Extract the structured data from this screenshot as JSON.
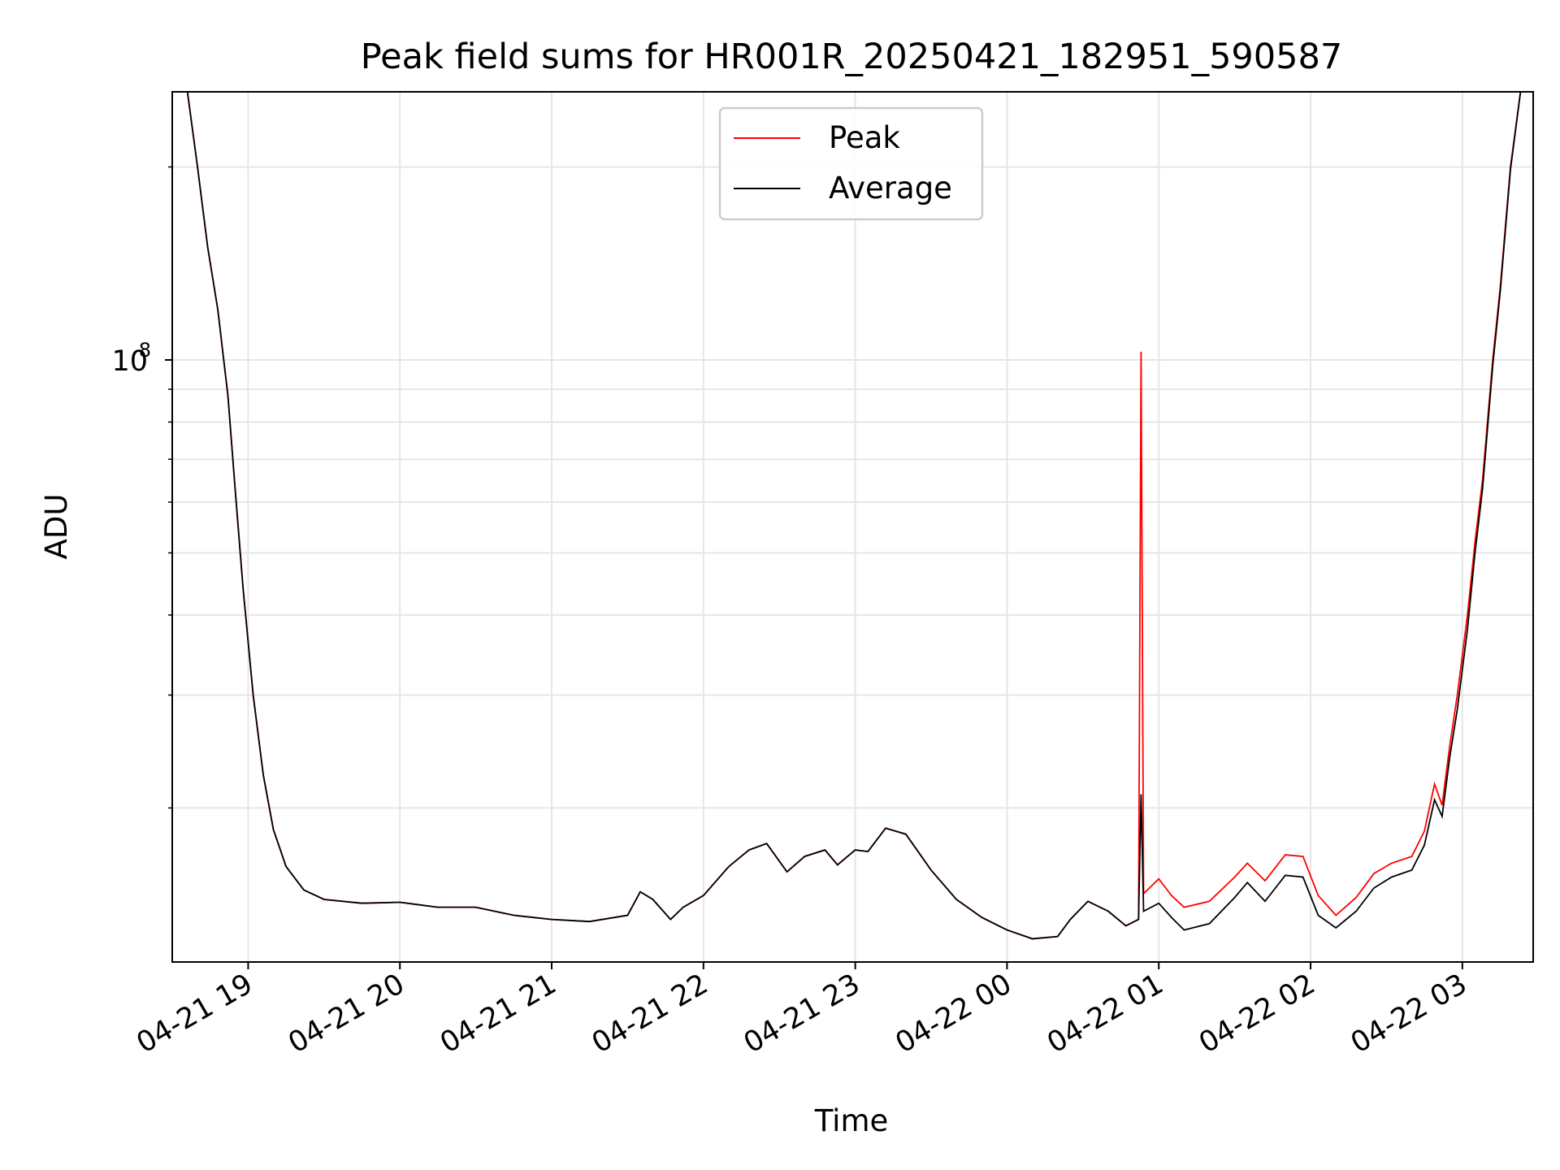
{
  "chart_data": {
    "type": "line",
    "title": "Peak field sums for HR001R_20250421_182951_590587",
    "xlabel": "Time",
    "ylabel": "ADU",
    "x_scale": "time",
    "y_scale": "log",
    "grid": true,
    "legend_position": "upper center",
    "x_range": [
      "2025-04-21 18:30",
      "2025-04-22 03:28"
    ],
    "y_range": [
      11500000,
      262000000
    ],
    "x_ticks": [
      "04-21 19",
      "04-21 20",
      "04-21 21",
      "04-21 22",
      "04-21 23",
      "04-22 00",
      "04-22 01",
      "04-22 02",
      "04-22 03"
    ],
    "y_major_tick": {
      "base": "10",
      "exponent": "8"
    },
    "series": [
      {
        "name": "Peak",
        "color": "#ff0000",
        "points": [
          [
            "2025-04-21 18:36",
            262000000
          ],
          [
            "2025-04-21 18:40",
            200000000
          ],
          [
            "2025-04-21 18:44",
            150000000
          ],
          [
            "2025-04-21 18:48",
            120000000
          ],
          [
            "2025-04-21 18:52",
            88000000
          ],
          [
            "2025-04-21 18:55",
            62000000
          ],
          [
            "2025-04-21 18:58",
            44000000
          ],
          [
            "2025-04-21 19:02",
            30000000
          ],
          [
            "2025-04-21 19:06",
            22500000
          ],
          [
            "2025-04-21 19:10",
            18500000
          ],
          [
            "2025-04-21 19:15",
            16200000
          ],
          [
            "2025-04-21 19:22",
            14900000
          ],
          [
            "2025-04-21 19:30",
            14400000
          ],
          [
            "2025-04-21 19:45",
            14200000
          ],
          [
            "2025-04-21 20:00",
            14250000
          ],
          [
            "2025-04-21 20:15",
            14000000
          ],
          [
            "2025-04-21 20:30",
            14000000
          ],
          [
            "2025-04-21 20:45",
            13600000
          ],
          [
            "2025-04-21 21:00",
            13400000
          ],
          [
            "2025-04-21 21:15",
            13300000
          ],
          [
            "2025-04-21 21:30",
            13600000
          ],
          [
            "2025-04-21 21:35",
            14800000
          ],
          [
            "2025-04-21 21:40",
            14400000
          ],
          [
            "2025-04-21 21:47",
            13400000
          ],
          [
            "2025-04-21 21:52",
            14000000
          ],
          [
            "2025-04-21 22:00",
            14600000
          ],
          [
            "2025-04-21 22:10",
            16200000
          ],
          [
            "2025-04-21 22:18",
            17200000
          ],
          [
            "2025-04-21 22:25",
            17600000
          ],
          [
            "2025-04-21 22:33",
            15900000
          ],
          [
            "2025-04-21 22:40",
            16800000
          ],
          [
            "2025-04-21 22:48",
            17200000
          ],
          [
            "2025-04-21 22:53",
            16300000
          ],
          [
            "2025-04-21 23:00",
            17200000
          ],
          [
            "2025-04-21 23:05",
            17100000
          ],
          [
            "2025-04-21 23:12",
            18600000
          ],
          [
            "2025-04-21 23:20",
            18200000
          ],
          [
            "2025-04-21 23:30",
            16000000
          ],
          [
            "2025-04-21 23:40",
            14400000
          ],
          [
            "2025-04-21 23:50",
            13500000
          ],
          [
            "2025-04-22 00:00",
            12900000
          ],
          [
            "2025-04-22 00:10",
            12500000
          ],
          [
            "2025-04-22 00:20",
            12600000
          ],
          [
            "2025-04-22 00:25",
            13400000
          ],
          [
            "2025-04-22 00:32",
            14300000
          ],
          [
            "2025-04-22 00:40",
            13800000
          ],
          [
            "2025-04-22 00:47",
            13100000
          ],
          [
            "2025-04-22 00:52",
            13400000
          ],
          [
            "2025-04-22 00:53",
            103000000
          ],
          [
            "2025-04-22 00:54",
            14700000
          ],
          [
            "2025-04-22 01:00",
            15500000
          ],
          [
            "2025-04-22 01:05",
            14600000
          ],
          [
            "2025-04-22 01:10",
            14000000
          ],
          [
            "2025-04-22 01:20",
            14300000
          ],
          [
            "2025-04-22 01:30",
            15600000
          ],
          [
            "2025-04-22 01:35",
            16400000
          ],
          [
            "2025-04-22 01:42",
            15400000
          ],
          [
            "2025-04-22 01:50",
            16900000
          ],
          [
            "2025-04-22 01:57",
            16800000
          ],
          [
            "2025-04-22 02:03",
            14600000
          ],
          [
            "2025-04-22 02:10",
            13600000
          ],
          [
            "2025-04-22 02:18",
            14500000
          ],
          [
            "2025-04-22 02:25",
            15800000
          ],
          [
            "2025-04-22 02:32",
            16400000
          ],
          [
            "2025-04-22 02:40",
            16800000
          ],
          [
            "2025-04-22 02:45",
            18400000
          ],
          [
            "2025-04-22 02:49",
            21800000
          ],
          [
            "2025-04-22 02:52",
            20200000
          ],
          [
            "2025-04-22 02:55",
            25000000
          ],
          [
            "2025-04-22 02:58",
            30000000
          ],
          [
            "2025-04-22 03:02",
            40000000
          ],
          [
            "2025-04-22 03:05",
            52000000
          ],
          [
            "2025-04-22 03:08",
            65000000
          ],
          [
            "2025-04-22 03:12",
            100000000
          ],
          [
            "2025-04-22 03:15",
            130000000
          ],
          [
            "2025-04-22 03:19",
            200000000
          ],
          [
            "2025-04-22 03:23",
            262000000
          ]
        ]
      },
      {
        "name": "Average",
        "color": "#000000",
        "points": [
          [
            "2025-04-21 18:36",
            262000000
          ],
          [
            "2025-04-21 18:40",
            200000000
          ],
          [
            "2025-04-21 18:44",
            150000000
          ],
          [
            "2025-04-21 18:48",
            120000000
          ],
          [
            "2025-04-21 18:52",
            88000000
          ],
          [
            "2025-04-21 18:55",
            62000000
          ],
          [
            "2025-04-21 18:58",
            44000000
          ],
          [
            "2025-04-21 19:02",
            30000000
          ],
          [
            "2025-04-21 19:06",
            22500000
          ],
          [
            "2025-04-21 19:10",
            18500000
          ],
          [
            "2025-04-21 19:15",
            16200000
          ],
          [
            "2025-04-21 19:22",
            14900000
          ],
          [
            "2025-04-21 19:30",
            14400000
          ],
          [
            "2025-04-21 19:45",
            14200000
          ],
          [
            "2025-04-21 20:00",
            14250000
          ],
          [
            "2025-04-21 20:15",
            14000000
          ],
          [
            "2025-04-21 20:30",
            14000000
          ],
          [
            "2025-04-21 20:45",
            13600000
          ],
          [
            "2025-04-21 21:00",
            13400000
          ],
          [
            "2025-04-21 21:15",
            13300000
          ],
          [
            "2025-04-21 21:30",
            13600000
          ],
          [
            "2025-04-21 21:35",
            14800000
          ],
          [
            "2025-04-21 21:40",
            14400000
          ],
          [
            "2025-04-21 21:47",
            13400000
          ],
          [
            "2025-04-21 21:52",
            14000000
          ],
          [
            "2025-04-21 22:00",
            14600000
          ],
          [
            "2025-04-21 22:10",
            16200000
          ],
          [
            "2025-04-21 22:18",
            17200000
          ],
          [
            "2025-04-21 22:25",
            17600000
          ],
          [
            "2025-04-21 22:33",
            15900000
          ],
          [
            "2025-04-21 22:40",
            16800000
          ],
          [
            "2025-04-21 22:48",
            17200000
          ],
          [
            "2025-04-21 22:53",
            16300000
          ],
          [
            "2025-04-21 23:00",
            17200000
          ],
          [
            "2025-04-21 23:05",
            17100000
          ],
          [
            "2025-04-21 23:12",
            18600000
          ],
          [
            "2025-04-21 23:20",
            18200000
          ],
          [
            "2025-04-21 23:30",
            16000000
          ],
          [
            "2025-04-21 23:40",
            14400000
          ],
          [
            "2025-04-21 23:50",
            13500000
          ],
          [
            "2025-04-22 00:00",
            12900000
          ],
          [
            "2025-04-22 00:10",
            12500000
          ],
          [
            "2025-04-22 00:20",
            12600000
          ],
          [
            "2025-04-22 00:25",
            13400000
          ],
          [
            "2025-04-22 00:32",
            14300000
          ],
          [
            "2025-04-22 00:40",
            13800000
          ],
          [
            "2025-04-22 00:47",
            13100000
          ],
          [
            "2025-04-22 00:52",
            13400000
          ],
          [
            "2025-04-22 00:53",
            21000000
          ],
          [
            "2025-04-22 00:54",
            13800000
          ],
          [
            "2025-04-22 01:00",
            14200000
          ],
          [
            "2025-04-22 01:05",
            13500000
          ],
          [
            "2025-04-22 01:10",
            12900000
          ],
          [
            "2025-04-22 01:20",
            13200000
          ],
          [
            "2025-04-22 01:30",
            14500000
          ],
          [
            "2025-04-22 01:35",
            15300000
          ],
          [
            "2025-04-22 01:42",
            14300000
          ],
          [
            "2025-04-22 01:50",
            15700000
          ],
          [
            "2025-04-22 01:57",
            15600000
          ],
          [
            "2025-04-22 02:03",
            13600000
          ],
          [
            "2025-04-22 02:10",
            13000000
          ],
          [
            "2025-04-22 02:18",
            13800000
          ],
          [
            "2025-04-22 02:25",
            15000000
          ],
          [
            "2025-04-22 02:32",
            15600000
          ],
          [
            "2025-04-22 02:40",
            16000000
          ],
          [
            "2025-04-22 02:45",
            17500000
          ],
          [
            "2025-04-22 02:49",
            20600000
          ],
          [
            "2025-04-22 02:52",
            19400000
          ],
          [
            "2025-04-22 02:55",
            24000000
          ],
          [
            "2025-04-22 02:58",
            28500000
          ],
          [
            "2025-04-22 03:02",
            38000000
          ],
          [
            "2025-04-22 03:05",
            50000000
          ],
          [
            "2025-04-22 03:08",
            63000000
          ],
          [
            "2025-04-22 03:12",
            98000000
          ],
          [
            "2025-04-22 03:15",
            128000000
          ],
          [
            "2025-04-22 03:19",
            198000000
          ],
          [
            "2025-04-22 03:23",
            262000000
          ]
        ]
      }
    ]
  }
}
